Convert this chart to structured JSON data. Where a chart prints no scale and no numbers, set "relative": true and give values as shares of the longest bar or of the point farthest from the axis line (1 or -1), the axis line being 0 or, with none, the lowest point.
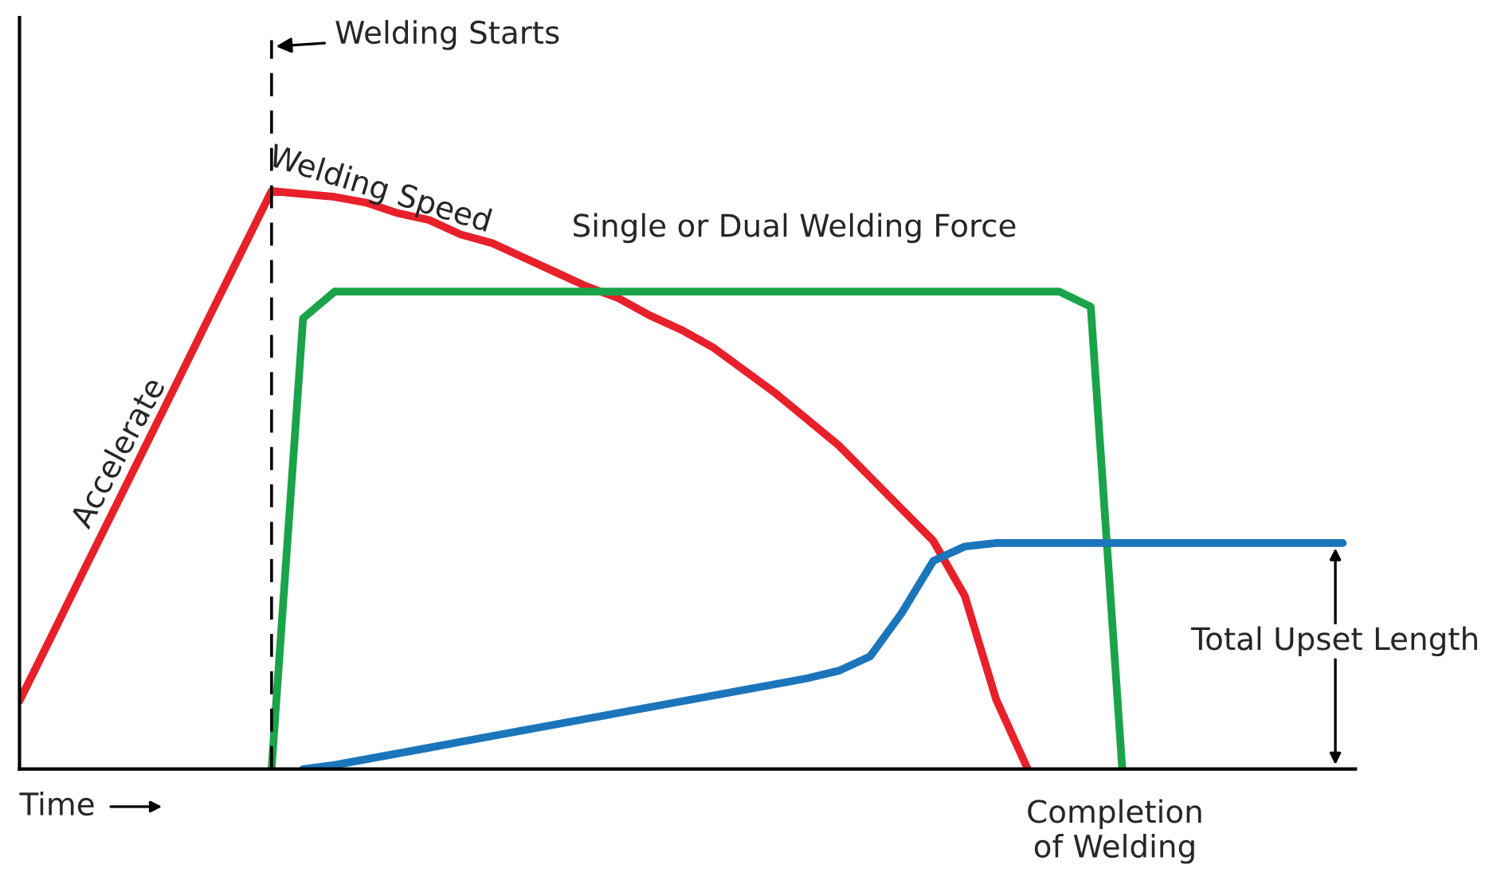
{
  "chart_data": {
    "type": "line",
    "relative": true,
    "xlabel": "Time",
    "marker": "none",
    "line_style": "solid",
    "categories": [
      null,
      null,
      null,
      null,
      null,
      null,
      null,
      null,
      null,
      null,
      null,
      null,
      null,
      null,
      null,
      null,
      null,
      null,
      null,
      null,
      null,
      null,
      null,
      null,
      null,
      null,
      null,
      null,
      null,
      null,
      null,
      null,
      null,
      null,
      null,
      null,
      null,
      null,
      null,
      null,
      null,
      null,
      null
    ],
    "series": [
      {
        "color": "#e8202a",
        "values": [
          0.118,
          0.228,
          0.339,
          0.449,
          0.559,
          0.669,
          0.78,
          0.89,
          1,
          0.995,
          0.99,
          0.98,
          0.962,
          0.95,
          0.925,
          0.91,
          0.885,
          0.86,
          0.835,
          0.815,
          0.785,
          0.76,
          0.73,
          0.69,
          0.65,
          0.605,
          0.56,
          0.505,
          0.45,
          0.395,
          0.3,
          0.12,
          0,
          null,
          null,
          null,
          null,
          null,
          null,
          null,
          null,
          null,
          null
        ]
      },
      {
        "color": "#1aa34a",
        "values": [
          null,
          null,
          null,
          null,
          null,
          null,
          null,
          null,
          0,
          0.78,
          0.826,
          0.826,
          0.826,
          0.826,
          0.826,
          0.826,
          0.826,
          0.826,
          0.826,
          0.826,
          0.826,
          0.826,
          0.826,
          0.826,
          0.826,
          0.826,
          0.826,
          0.826,
          0.826,
          0.826,
          0.826,
          0.826,
          0.826,
          0.826,
          0.8,
          0,
          null,
          null,
          null,
          null,
          null,
          null,
          null
        ]
      },
      {
        "color": "#1b75bb",
        "values": [
          null,
          null,
          null,
          null,
          null,
          null,
          null,
          null,
          null,
          0,
          0.007,
          0.017,
          0.027,
          0.037,
          0.047,
          0.057,
          0.067,
          0.077,
          0.087,
          0.097,
          0.107,
          0.117,
          0.127,
          0.137,
          0.147,
          0.157,
          0.17,
          0.195,
          0.27,
          0.36,
          0.385,
          0.391,
          0.391,
          0.391,
          0.391,
          0.391,
          0.391,
          0.391,
          0.391,
          0.391,
          0.391,
          0.391,
          0.391
        ]
      }
    ],
    "annotations": [
      "Welding Starts",
      "Accelerate",
      "Welding Speed",
      "Single or Dual Welding Force",
      "Total Upset Length",
      "Completion of Welding"
    ]
  }
}
